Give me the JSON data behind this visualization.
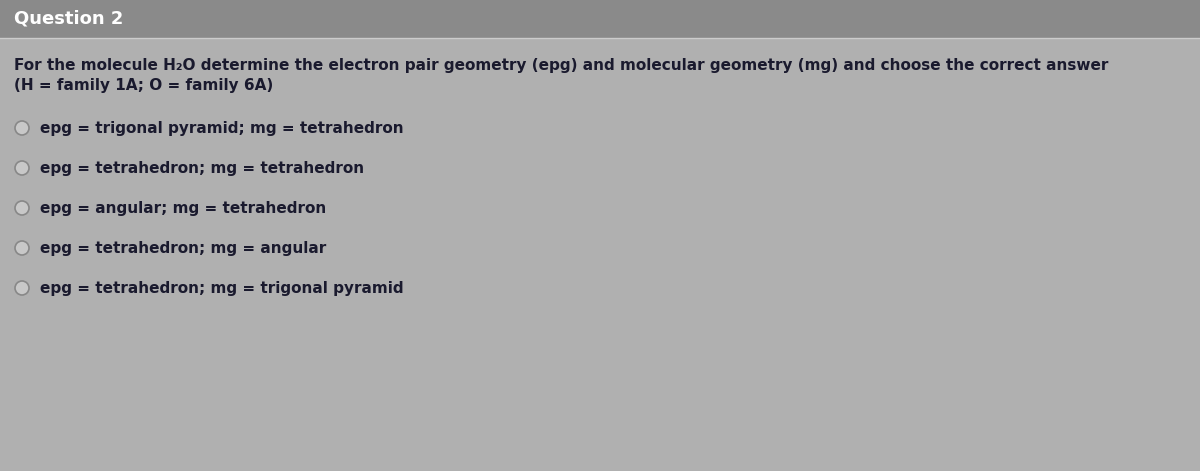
{
  "bg_color": "#b0b0b0",
  "header_bg": "#8a8a8a",
  "title": "Question 2",
  "title_color": "#ffffff",
  "title_fontsize": 13,
  "question_line1": "For the molecule H₂O determine the electron pair geometry (epg) and molecular geometry (mg) and choose the correct answer",
  "question_line2": "(H = family 1A; O = family 6A)",
  "question_color": "#1a1a2e",
  "question_fontsize": 11,
  "options": [
    "epg = trigonal pyramid; mg = tetrahedron",
    "epg = tetrahedron; mg = tetrahedron",
    "epg = angular; mg = tetrahedron",
    "epg = tetrahedron; mg = angular",
    "epg = tetrahedron; mg = trigonal pyramid"
  ],
  "option_color": "#1a1a2e",
  "option_fontsize": 11,
  "radio_color": "#c8c8c8",
  "radio_edge_color": "#888888",
  "figsize": [
    12,
    4.71
  ],
  "dpi": 100
}
